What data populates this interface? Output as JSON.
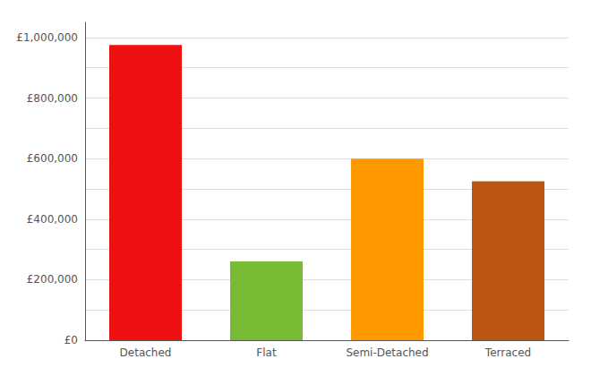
{
  "chart_data": {
    "type": "bar",
    "categories": [
      "Detached",
      "Flat",
      "Semi-Detached",
      "Terraced"
    ],
    "values": [
      975000,
      260000,
      600000,
      525000
    ],
    "colors": [
      "#ee1111",
      "#77bb33",
      "#ff9900",
      "#bb5511"
    ],
    "ylim": [
      0,
      1050000
    ],
    "yticks": [
      {
        "value": 0,
        "label": "£0"
      },
      {
        "value": 100000,
        "label": ""
      },
      {
        "value": 200000,
        "label": "£200,000"
      },
      {
        "value": 300000,
        "label": ""
      },
      {
        "value": 400000,
        "label": "£400,000"
      },
      {
        "value": 500000,
        "label": ""
      },
      {
        "value": 600000,
        "label": "£600,000"
      },
      {
        "value": 700000,
        "label": ""
      },
      {
        "value": 800000,
        "label": "£800,000"
      },
      {
        "value": 900000,
        "label": ""
      },
      {
        "value": 1000000,
        "label": "£1,000,000"
      }
    ],
    "grid": true
  }
}
